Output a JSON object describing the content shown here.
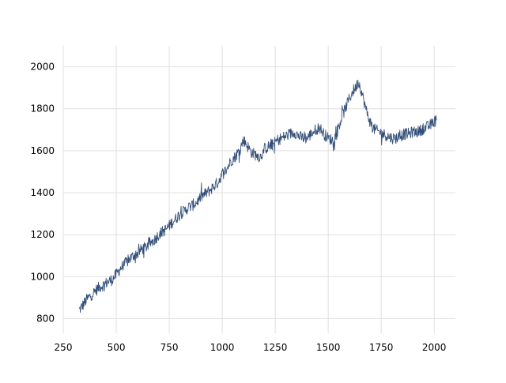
{
  "chart_data": {
    "type": "line",
    "title": "",
    "xlabel": "",
    "ylabel": "",
    "xlim": [
      250,
      2100
    ],
    "ylim": [
      730,
      2100
    ],
    "xticks": [
      250,
      500,
      750,
      1000,
      1250,
      1500,
      1750,
      2000
    ],
    "yticks": [
      800,
      1000,
      1200,
      1400,
      1600,
      1800,
      2000
    ],
    "grid": true,
    "series": [
      {
        "color": "#34507a",
        "noise": 28,
        "x": [
          325,
          340,
          360,
          380,
          400,
          420,
          440,
          460,
          480,
          500,
          520,
          540,
          560,
          580,
          600,
          620,
          640,
          660,
          680,
          700,
          720,
          740,
          760,
          780,
          800,
          820,
          840,
          860,
          880,
          900,
          920,
          940,
          960,
          980,
          1000,
          1020,
          1040,
          1060,
          1080,
          1100,
          1110,
          1120,
          1140,
          1160,
          1180,
          1200,
          1220,
          1240,
          1260,
          1280,
          1300,
          1320,
          1340,
          1360,
          1380,
          1400,
          1420,
          1440,
          1460,
          1480,
          1500,
          1520,
          1540,
          1560,
          1580,
          1600,
          1620,
          1630,
          1640,
          1650,
          1660,
          1680,
          1700,
          1720,
          1740,
          1760,
          1780,
          1800,
          1820,
          1840,
          1860,
          1880,
          1900,
          1920,
          1940,
          1960,
          1980,
          2000,
          2010
        ],
        "y": [
          840,
          860,
          890,
          910,
          930,
          950,
          960,
          975,
          985,
          1010,
          1040,
          1060,
          1080,
          1100,
          1110,
          1130,
          1140,
          1160,
          1175,
          1200,
          1215,
          1230,
          1255,
          1275,
          1300,
          1310,
          1330,
          1340,
          1355,
          1380,
          1395,
          1410,
          1430,
          1450,
          1490,
          1510,
          1550,
          1570,
          1600,
          1650,
          1640,
          1620,
          1590,
          1580,
          1570,
          1610,
          1620,
          1630,
          1650,
          1660,
          1670,
          1680,
          1690,
          1670,
          1660,
          1660,
          1680,
          1700,
          1710,
          1680,
          1660,
          1650,
          1680,
          1750,
          1800,
          1850,
          1890,
          1900,
          1930,
          1910,
          1870,
          1790,
          1730,
          1700,
          1690,
          1680,
          1670,
          1660,
          1660,
          1670,
          1680,
          1680,
          1690,
          1690,
          1700,
          1710,
          1720,
          1740,
          1745
        ]
      }
    ]
  }
}
